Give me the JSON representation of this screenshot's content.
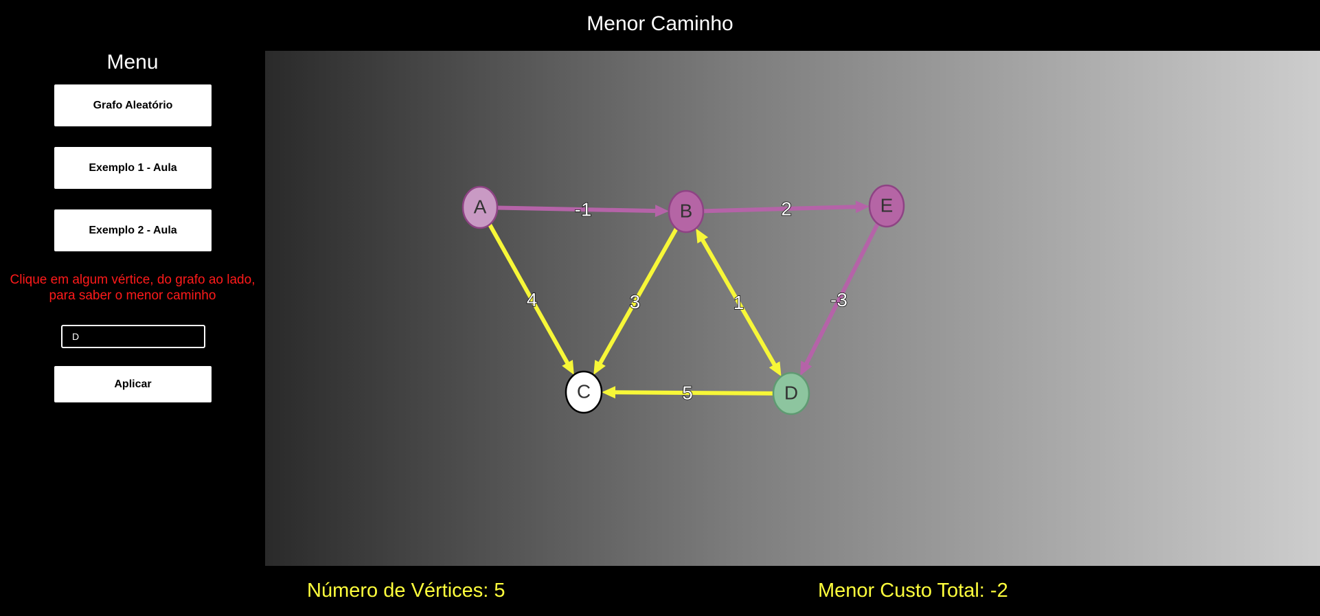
{
  "app": {
    "title": "Menor Caminho"
  },
  "sidebar": {
    "title": "Menu",
    "buttons": {
      "random": "Grafo Aleatório",
      "example1": "Exemplo 1 - Aula",
      "example2": "Exemplo 2 - Aula",
      "apply": "Aplicar"
    },
    "instructions_line1": "Clique em algum vértice, do grafo ao lado,",
    "instructions_line2": "para saber o menor caminho",
    "input_value": "D"
  },
  "graph": {
    "colors": {
      "default_edge": "#b563a8",
      "path_edge": "#f7f738",
      "node_default_fill": "#b565a5",
      "node_source_fill": "#c99ac4",
      "node_target_fill": "#8dc59f",
      "node_current_fill": "#ffffff"
    },
    "nodes": [
      {
        "id": "A",
        "label": "A",
        "state": "source"
      },
      {
        "id": "B",
        "label": "B",
        "state": "default"
      },
      {
        "id": "C",
        "label": "C",
        "state": "current"
      },
      {
        "id": "D",
        "label": "D",
        "state": "target"
      },
      {
        "id": "E",
        "label": "E",
        "state": "default"
      }
    ],
    "edges": [
      {
        "from": "A",
        "to": "B",
        "weight": "-1",
        "highlight": false
      },
      {
        "from": "B",
        "to": "E",
        "weight": "2",
        "highlight": false
      },
      {
        "from": "A",
        "to": "C",
        "weight": "4",
        "highlight": true
      },
      {
        "from": "B",
        "to": "C",
        "weight": "3",
        "highlight": true
      },
      {
        "from": "B",
        "to": "D",
        "weight": "1",
        "highlight": true,
        "bidirectional": true
      },
      {
        "from": "E",
        "to": "D",
        "weight": "-3",
        "highlight": false
      },
      {
        "from": "D",
        "to": "C",
        "weight": "5",
        "highlight": true
      }
    ]
  },
  "footer": {
    "vertex_count": "Número de Vértices: 5",
    "min_cost": "Menor Custo Total: -2"
  }
}
